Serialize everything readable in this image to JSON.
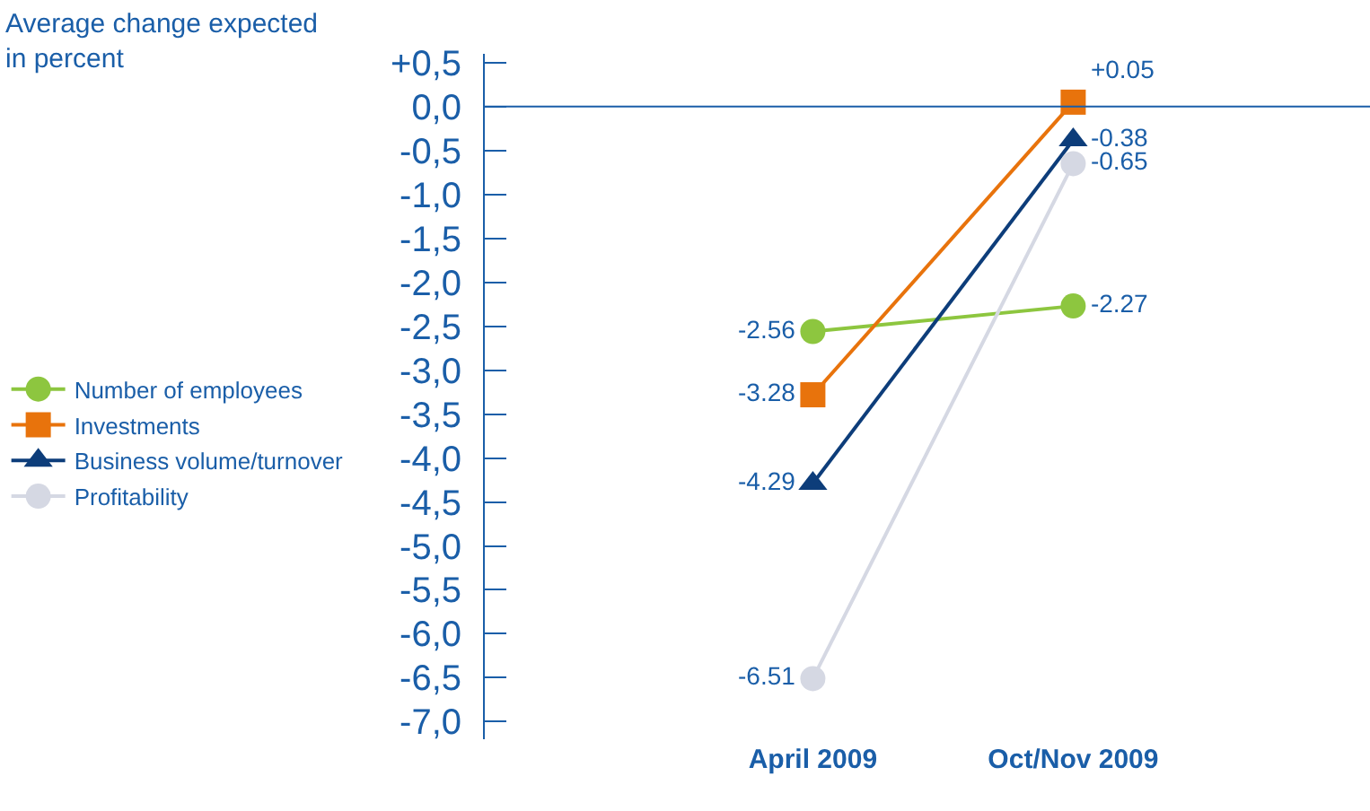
{
  "chart_data": {
    "type": "line",
    "ylabel": "Average change expected in percent",
    "categories": [
      "April 2009",
      "Oct/Nov 2009"
    ],
    "series": [
      {
        "name": "Number of employees",
        "color": "#8dc63f",
        "marker": "circle",
        "values": [
          -2.56,
          -2.27
        ],
        "value_labels": [
          "-2.56",
          "-2.27"
        ]
      },
      {
        "name": "Investments",
        "color": "#e8730c",
        "marker": "square",
        "values": [
          -3.28,
          0.05
        ],
        "value_labels": [
          "-3.28",
          "+0.05"
        ]
      },
      {
        "name": "Business volume/turnover",
        "color": "#0d3d7a",
        "marker": "triangle",
        "values": [
          -4.29,
          -0.38
        ],
        "value_labels": [
          "-4.29",
          "-0.38"
        ]
      },
      {
        "name": "Profitability",
        "color": "#d5d8e3",
        "marker": "circle",
        "values": [
          -6.51,
          -0.65
        ],
        "value_labels": [
          "-6.51",
          "-0.65"
        ]
      }
    ],
    "ylim": [
      -7.2,
      0.6
    ],
    "yticks": [
      {
        "value": 0.5,
        "label": "+0,5"
      },
      {
        "value": 0,
        "label": "0,0"
      },
      {
        "value": -0.5,
        "label": "-0,5"
      },
      {
        "value": -1,
        "label": "-1,0"
      },
      {
        "value": -1.5,
        "label": "-1,5"
      },
      {
        "value": -2,
        "label": "-2,0"
      },
      {
        "value": -2.5,
        "label": "-2,5"
      },
      {
        "value": -3,
        "label": "-3,0"
      },
      {
        "value": -3.5,
        "label": "-3,5"
      },
      {
        "value": -4,
        "label": "-4,0"
      },
      {
        "value": -4.5,
        "label": "-4,5"
      },
      {
        "value": -5,
        "label": "-5,0"
      },
      {
        "value": -5.5,
        "label": "-5,5"
      },
      {
        "value": -6,
        "label": "-6,0"
      },
      {
        "value": -6.5,
        "label": "-6,5"
      },
      {
        "value": -7,
        "label": "-7,0"
      }
    ],
    "ref_lines": [
      {
        "axis": "y",
        "value": 0,
        "color": "#1a5ea8"
      }
    ],
    "legend": "left",
    "line_style": "solid"
  }
}
